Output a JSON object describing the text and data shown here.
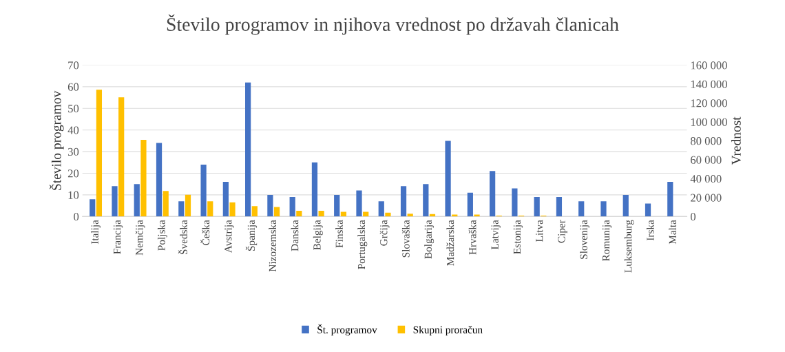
{
  "chart_data": {
    "type": "bar",
    "title": "Število programov in njihova vrednost po državah članicah",
    "ylabel": "Število programov",
    "y2label": "Vrednost",
    "categories": [
      "Italija",
      "Francija",
      "Nemčija",
      "Poljska",
      "Švedska",
      "Češka",
      "Avstrija",
      "Španija",
      "Nizozemska",
      "Danska",
      "Belgija",
      "Finska",
      "Portugalska",
      "Grčija",
      "Slovaška",
      "Bolgarija",
      "Madžarska",
      "Hrvaška",
      "Latvija",
      "Estonija",
      "Litva",
      "Ciper",
      "Slovenija",
      "Romunija",
      "Luksemburg",
      "Irska",
      "Malta"
    ],
    "series": [
      {
        "name": "Št. programov",
        "color": "#4472c4",
        "values": [
          8,
          14,
          15,
          34,
          7,
          24,
          16,
          62,
          10,
          9,
          25,
          10,
          12,
          7,
          14,
          15,
          35,
          11,
          21,
          13,
          9,
          9,
          7,
          7,
          10,
          6,
          16
        ]
      },
      {
        "name": "Skupni proračun",
        "color": "#ffc000",
        "axis": "y2",
        "values": [
          134000,
          126000,
          81000,
          27000,
          23000,
          16000,
          15000,
          11000,
          10000,
          6000,
          6000,
          5000,
          5000,
          4000,
          3000,
          2500,
          2000,
          2000,
          1000,
          1000,
          1000,
          0,
          0,
          0,
          0,
          0,
          0
        ]
      }
    ],
    "ylim": [
      0,
      70
    ],
    "yticks": [
      0,
      10,
      20,
      30,
      40,
      50,
      60,
      70
    ],
    "y2lim": [
      0,
      160000
    ],
    "y2ticks": [
      {
        "value": 0,
        "label": "0"
      },
      {
        "value": 20000,
        "label": "20 000"
      },
      {
        "value": 40000,
        "label": "40 000"
      },
      {
        "value": 60000,
        "label": "60 000"
      },
      {
        "value": 80000,
        "label": "80 000"
      },
      {
        "value": 100000,
        "label": "100 000"
      },
      {
        "value": 120000,
        "label": "120 000"
      },
      {
        "value": 140000,
        "label": "140 000"
      },
      {
        "value": 160000,
        "label": "160 000"
      }
    ],
    "grid": "y",
    "legend": "bottom"
  }
}
